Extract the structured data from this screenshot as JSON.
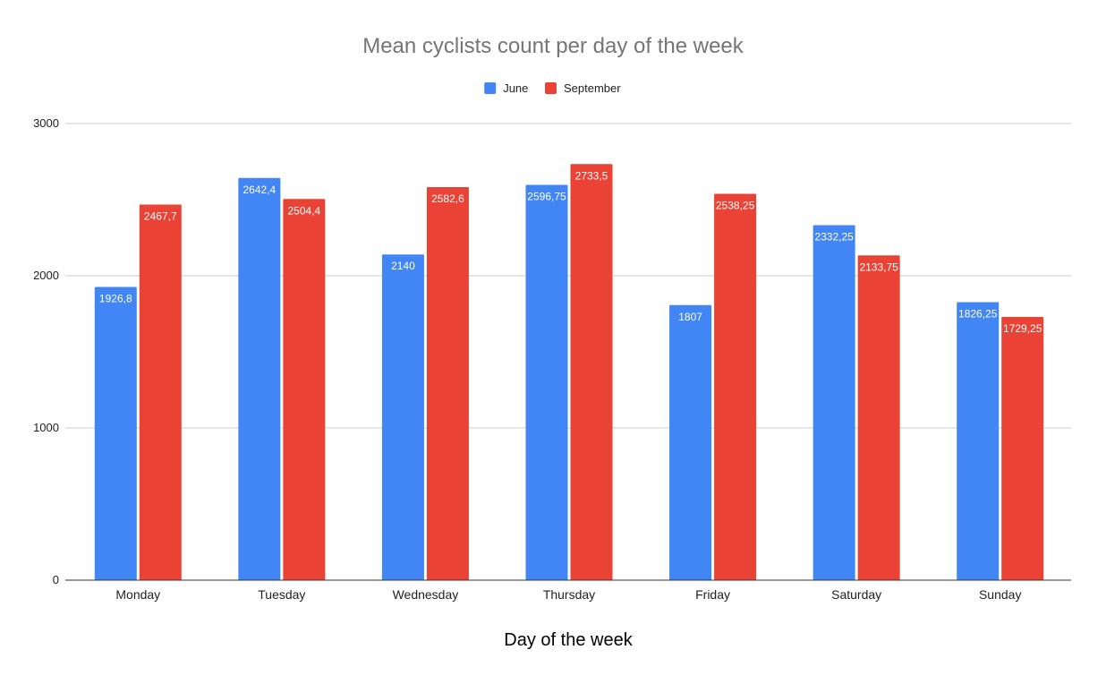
{
  "chart_data": {
    "type": "bar",
    "title": "Mean cyclists count per day of the week",
    "xlabel": "Day of the week",
    "ylabel": "",
    "ylim": [
      0,
      3000
    ],
    "yticks": [
      "0",
      "1000",
      "2000",
      "3000"
    ],
    "grid": true,
    "legend_position": "top",
    "categories": [
      "Monday",
      "Tuesday",
      "Wednesday",
      "Thursday",
      "Friday",
      "Saturday",
      "Sunday"
    ],
    "series": [
      {
        "name": "June",
        "color": "#4285f4",
        "values": [
          1926.8,
          2642.4,
          2140,
          2596.75,
          1807,
          2332.25,
          1826.25
        ],
        "labels": [
          "1926,8",
          "2642,4",
          "2140",
          "2596,75",
          "1807",
          "2332,25",
          "1826,25"
        ]
      },
      {
        "name": "September",
        "color": "#ea4335",
        "values": [
          2467.7,
          2504.4,
          2582.6,
          2733.5,
          2538.25,
          2133.75,
          1729.25
        ],
        "labels": [
          "2467,7",
          "2504,4",
          "2582,6",
          "2733,5",
          "2538,25",
          "2133,75",
          "1729,25"
        ]
      }
    ]
  }
}
